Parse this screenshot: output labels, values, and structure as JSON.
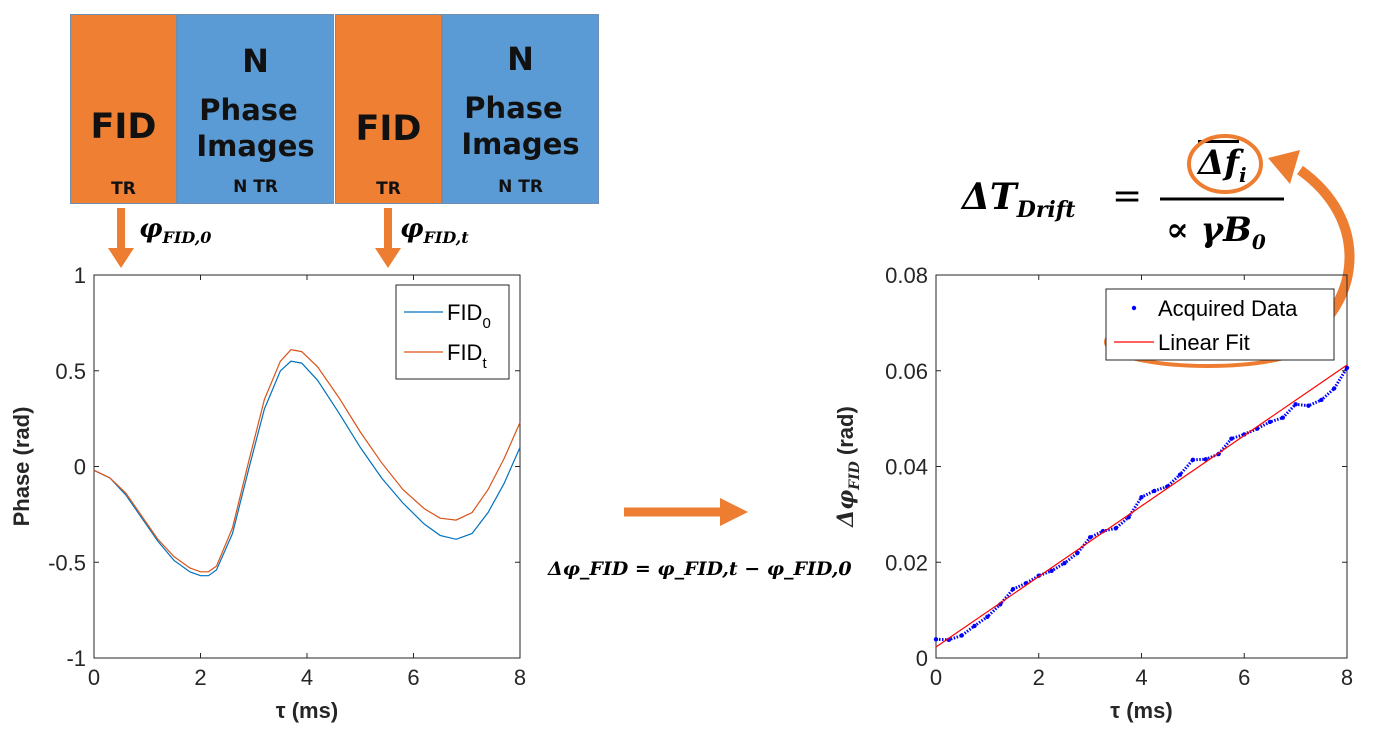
{
  "sequence": {
    "fid_label": "FID",
    "fid_sub": "TR",
    "n_label": "N",
    "phase_label": "Phase",
    "images_label": "Images",
    "n_sub": "N TR",
    "arrow_color": "#ED7D31",
    "fid_color": "#ED7D31",
    "phase_color": "#5B9BD5"
  },
  "labels": {
    "phi_fid0": "φFID,0",
    "phi_fid0_main": "φ",
    "phi_fid0_sub": "FID,0",
    "phi_fidt": "φFID,t",
    "phi_fidt_main": "φ",
    "phi_fidt_sub": "FID,t",
    "delta_eq": "Δφ_FID = φ_FID,t − φ_FID,0",
    "drift_eq": "ΔT_Drift = Δf̄_i / (∝ γ B_0)",
    "drift_lhs": "ΔT",
    "drift_lhs_sub": "Drift",
    "drift_eq_sign": "=",
    "drift_num": "Δf",
    "drift_num_sub": "i",
    "drift_den": "∝ γB",
    "drift_den_sub": "0"
  },
  "chart_data": [
    {
      "type": "line",
      "title": "",
      "xlabel": "τ (ms)",
      "ylabel": "Phase (rad)",
      "xlim": [
        0,
        8
      ],
      "ylim": [
        -1,
        1
      ],
      "xticks": [
        0,
        2,
        4,
        6,
        8
      ],
      "yticks": [
        -1,
        -0.5,
        0,
        0.5,
        1
      ],
      "legend_position": "top-right",
      "series": [
        {
          "name": "FID0",
          "label_main": "FID",
          "label_sub": "0",
          "color": "#0072BD",
          "x": [
            0,
            0.3,
            0.6,
            0.9,
            1.2,
            1.5,
            1.8,
            2.0,
            2.15,
            2.3,
            2.6,
            2.9,
            3.2,
            3.5,
            3.7,
            3.9,
            4.2,
            4.6,
            5.0,
            5.4,
            5.8,
            6.2,
            6.5,
            6.8,
            7.1,
            7.4,
            7.7,
            8.0
          ],
          "y": [
            -0.02,
            -0.06,
            -0.15,
            -0.27,
            -0.39,
            -0.49,
            -0.55,
            -0.57,
            -0.57,
            -0.54,
            -0.35,
            -0.02,
            0.3,
            0.5,
            0.55,
            0.54,
            0.45,
            0.28,
            0.1,
            -0.06,
            -0.19,
            -0.3,
            -0.36,
            -0.38,
            -0.35,
            -0.24,
            -0.09,
            0.1
          ]
        },
        {
          "name": "FIDt",
          "label_main": "FID",
          "label_sub": "t",
          "color": "#D95319",
          "x": [
            0,
            0.3,
            0.6,
            0.9,
            1.2,
            1.5,
            1.8,
            2.0,
            2.15,
            2.3,
            2.6,
            2.9,
            3.2,
            3.5,
            3.7,
            3.9,
            4.2,
            4.6,
            5.0,
            5.4,
            5.8,
            6.2,
            6.5,
            6.8,
            7.1,
            7.4,
            7.7,
            8.0
          ],
          "y": [
            -0.02,
            -0.06,
            -0.14,
            -0.26,
            -0.38,
            -0.47,
            -0.53,
            -0.55,
            -0.55,
            -0.52,
            -0.32,
            0.02,
            0.35,
            0.55,
            0.61,
            0.6,
            0.52,
            0.36,
            0.18,
            0.02,
            -0.12,
            -0.22,
            -0.27,
            -0.28,
            -0.24,
            -0.12,
            0.04,
            0.23
          ]
        }
      ]
    },
    {
      "type": "scatter",
      "title": "",
      "xlabel": "τ (ms)",
      "ylabel": "Δφ_FID (rad)",
      "ylabel_main": "Δφ",
      "ylabel_sub": "FID",
      "ylabel_unit": " (rad)",
      "xlim": [
        0,
        8
      ],
      "ylim": [
        0,
        0.08
      ],
      "xticks": [
        0,
        2,
        4,
        6,
        8
      ],
      "yticks": [
        0,
        0.02,
        0.04,
        0.06,
        0.08
      ],
      "legend_position": "top-right",
      "series": [
        {
          "name": "Acquired Data",
          "color": "#0000FF",
          "marker": "dot",
          "x": [
            0,
            0.25,
            0.5,
            0.75,
            1.0,
            1.25,
            1.5,
            1.75,
            2.0,
            2.25,
            2.5,
            2.75,
            3.0,
            3.25,
            3.5,
            3.75,
            4.0,
            4.25,
            4.5,
            4.75,
            5.0,
            5.25,
            5.5,
            5.75,
            6.0,
            6.25,
            6.5,
            6.75,
            7.0,
            7.25,
            7.5,
            7.75,
            8.0
          ],
          "y": [
            0.0039,
            0.0038,
            0.0047,
            0.0067,
            0.0086,
            0.0112,
            0.0144,
            0.0156,
            0.0172,
            0.0182,
            0.0198,
            0.0219,
            0.0252,
            0.0265,
            0.0271,
            0.0294,
            0.0336,
            0.0349,
            0.0358,
            0.0383,
            0.0414,
            0.0415,
            0.0426,
            0.0458,
            0.0467,
            0.0479,
            0.0493,
            0.0502,
            0.053,
            0.0527,
            0.0539,
            0.0563,
            0.0606
          ]
        },
        {
          "name": "Linear Fit",
          "color": "#FF0000",
          "marker": "line",
          "x": [
            0,
            8
          ],
          "y": [
            0.0023,
            0.0612
          ]
        }
      ]
    }
  ]
}
